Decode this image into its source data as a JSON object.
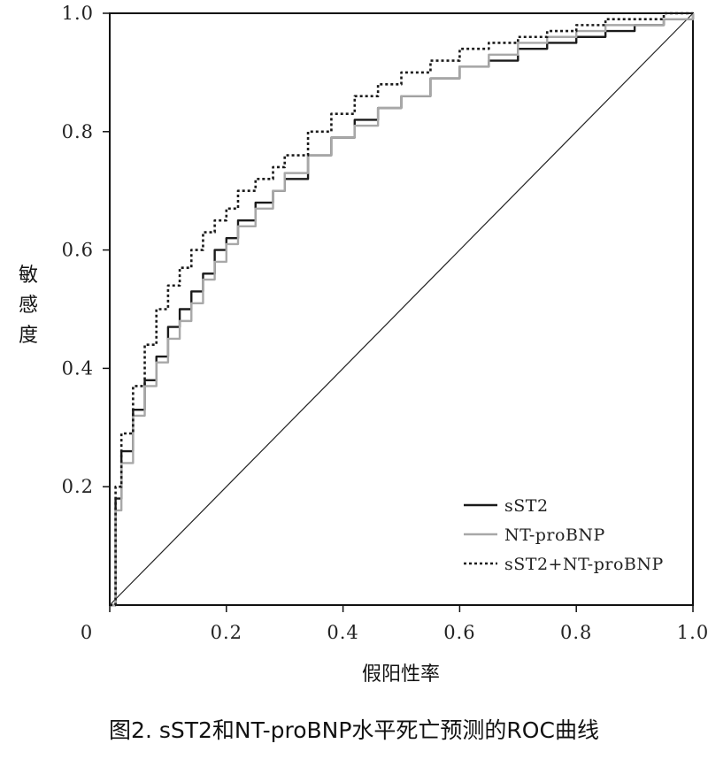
{
  "chart_data": {
    "type": "line",
    "xlabel": "假阳性率",
    "ylabel": "敏感度",
    "xlim": [
      0,
      1
    ],
    "ylim": [
      0,
      1
    ],
    "x_ticks": [
      "0",
      "0.2",
      "0.4",
      "0.6",
      "0.8",
      "1.0"
    ],
    "y_ticks": [
      "0.2",
      "0.4",
      "0.6",
      "0.8",
      "1.0"
    ],
    "legend_position": "bottom-right",
    "grid": false,
    "reference_line": {
      "x": [
        0,
        1
      ],
      "y": [
        0,
        1
      ]
    },
    "series": [
      {
        "name": "sST2",
        "color": "#1a1a1a",
        "style": "solid",
        "x": [
          0,
          0.01,
          0.02,
          0.04,
          0.06,
          0.08,
          0.1,
          0.12,
          0.14,
          0.16,
          0.18,
          0.2,
          0.22,
          0.25,
          0.28,
          0.3,
          0.34,
          0.38,
          0.42,
          0.46,
          0.5,
          0.55,
          0.6,
          0.65,
          0.7,
          0.75,
          0.8,
          0.85,
          0.9,
          0.95,
          1.0
        ],
        "y": [
          0,
          0.18,
          0.26,
          0.33,
          0.38,
          0.42,
          0.47,
          0.5,
          0.53,
          0.56,
          0.6,
          0.62,
          0.65,
          0.68,
          0.7,
          0.72,
          0.76,
          0.79,
          0.82,
          0.84,
          0.86,
          0.89,
          0.91,
          0.92,
          0.94,
          0.95,
          0.96,
          0.97,
          0.98,
          0.99,
          1.0
        ]
      },
      {
        "name": "NT-proBNP",
        "color": "#a8a8a8",
        "style": "solid",
        "x": [
          0,
          0.01,
          0.02,
          0.04,
          0.06,
          0.08,
          0.1,
          0.12,
          0.14,
          0.16,
          0.18,
          0.2,
          0.22,
          0.25,
          0.28,
          0.3,
          0.34,
          0.38,
          0.42,
          0.46,
          0.5,
          0.55,
          0.6,
          0.65,
          0.7,
          0.75,
          0.8,
          0.85,
          0.9,
          0.95,
          1.0
        ],
        "y": [
          0,
          0.16,
          0.24,
          0.32,
          0.37,
          0.41,
          0.45,
          0.48,
          0.51,
          0.55,
          0.58,
          0.61,
          0.64,
          0.67,
          0.7,
          0.73,
          0.76,
          0.79,
          0.81,
          0.84,
          0.86,
          0.89,
          0.91,
          0.93,
          0.95,
          0.96,
          0.97,
          0.98,
          0.98,
          0.99,
          1.0
        ]
      },
      {
        "name": "sST2+NT-proBNP",
        "color": "#1a1a1a",
        "style": "dotted",
        "x": [
          0,
          0.01,
          0.02,
          0.04,
          0.06,
          0.08,
          0.1,
          0.12,
          0.14,
          0.16,
          0.18,
          0.2,
          0.22,
          0.25,
          0.28,
          0.3,
          0.34,
          0.38,
          0.42,
          0.46,
          0.5,
          0.55,
          0.6,
          0.65,
          0.7,
          0.75,
          0.8,
          0.85,
          0.9,
          0.95,
          1.0
        ],
        "y": [
          0,
          0.2,
          0.29,
          0.37,
          0.44,
          0.5,
          0.54,
          0.57,
          0.6,
          0.63,
          0.65,
          0.67,
          0.7,
          0.72,
          0.74,
          0.76,
          0.8,
          0.83,
          0.86,
          0.88,
          0.9,
          0.92,
          0.94,
          0.95,
          0.96,
          0.97,
          0.98,
          0.99,
          0.99,
          1.0,
          1.0
        ]
      }
    ]
  },
  "caption": "图2. sST2和NT-proBNP水平死亡预测的ROC曲线"
}
